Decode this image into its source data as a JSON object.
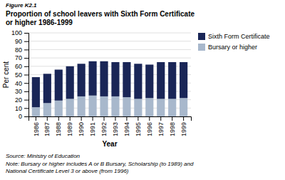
{
  "chart_data": {
    "type": "bar",
    "stacked": true,
    "title": "Proportion of school leavers with Sixth Form Certificate\nor higher 1986-1999",
    "annotations": [
      "Figure K2.1",
      "Source: Ministry of Education",
      "Note: Bursary or higher includes A or B Bursary, Scholarship (to 1989) and\nNational Certificate Level 3 or above (from 1996)"
    ],
    "x_label": "Year",
    "y_label": "Per cent",
    "categories": [
      "1986",
      "1987",
      "1988",
      "1989",
      "1990",
      "1991",
      "1992",
      "1993",
      "1994",
      "1995",
      "1996",
      "1997",
      "1998",
      "1999"
    ],
    "series": [
      {
        "name": "Bursary or higher",
        "color": "#a8b8cc",
        "values": [
          11,
          16,
          19,
          21,
          24,
          25,
          24,
          24,
          23,
          21,
          22,
          21,
          21,
          22
        ]
      },
      {
        "name": "Sixth Form Certificate",
        "color": "#1a2657",
        "values": [
          36,
          35,
          37,
          39,
          39,
          41,
          42,
          41,
          42,
          42,
          40,
          44,
          44,
          43
        ]
      }
    ],
    "ylim": [
      0,
      100
    ],
    "yticks": [
      0,
      10,
      20,
      30,
      40,
      50,
      60,
      70,
      80,
      90,
      100
    ],
    "grid": true,
    "legend": "right"
  }
}
